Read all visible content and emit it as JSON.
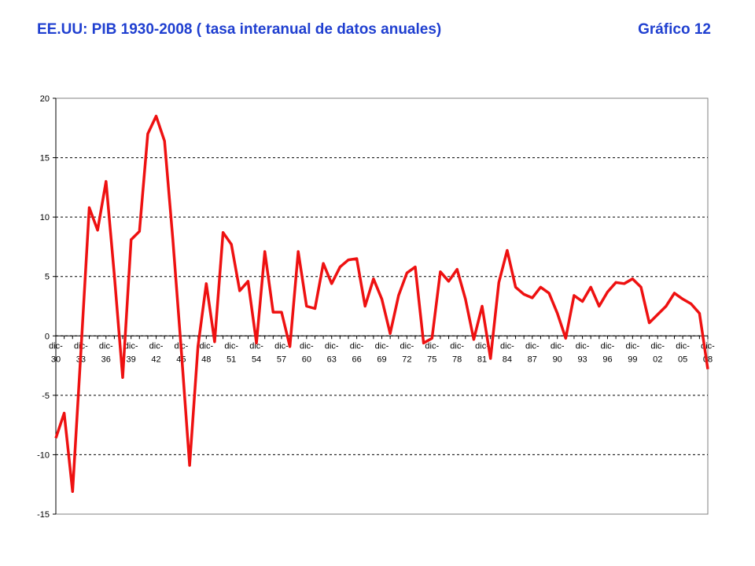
{
  "page": {
    "title": "EE.UU: PIB 1930-2008 ( tasa interanual de datos anuales)",
    "chart_number": "Gráfico 12"
  },
  "chart_data": {
    "type": "line",
    "title": "EE.UU: PIB 1930-2008 ( tasa interanual de datos anuales)",
    "xlabel": "",
    "ylabel": "",
    "ylim": [
      -15,
      20
    ],
    "yticks": [
      20,
      15,
      10,
      5,
      0,
      -5,
      -10,
      -15
    ],
    "grid": "horizontal dashed",
    "legend": "none",
    "line_color": "#ee1111",
    "x_tick_labels": [
      {
        "year": 1930,
        "line1": "dic-",
        "line2": "30"
      },
      {
        "year": 1933,
        "line1": "dic-",
        "line2": "33"
      },
      {
        "year": 1936,
        "line1": "dic-",
        "line2": "36"
      },
      {
        "year": 1939,
        "line1": "dic-",
        "line2": "39"
      },
      {
        "year": 1942,
        "line1": "dic-",
        "line2": "42"
      },
      {
        "year": 1945,
        "line1": "dic-",
        "line2": "45"
      },
      {
        "year": 1948,
        "line1": "dic-",
        "line2": "48"
      },
      {
        "year": 1951,
        "line1": "dic-",
        "line2": "51"
      },
      {
        "year": 1954,
        "line1": "dic-",
        "line2": "54"
      },
      {
        "year": 1957,
        "line1": "dic-",
        "line2": "57"
      },
      {
        "year": 1960,
        "line1": "dic-",
        "line2": "60"
      },
      {
        "year": 1963,
        "line1": "dic-",
        "line2": "63"
      },
      {
        "year": 1966,
        "line1": "dic-",
        "line2": "66"
      },
      {
        "year": 1969,
        "line1": "dic-",
        "line2": "69"
      },
      {
        "year": 1972,
        "line1": "dic-",
        "line2": "72"
      },
      {
        "year": 1975,
        "line1": "dic-",
        "line2": "75"
      },
      {
        "year": 1978,
        "line1": "dic-",
        "line2": "78"
      },
      {
        "year": 1981,
        "line1": "dic-",
        "line2": "81"
      },
      {
        "year": 1984,
        "line1": "dic-",
        "line2": "84"
      },
      {
        "year": 1987,
        "line1": "dic-",
        "line2": "87"
      },
      {
        "year": 1990,
        "line1": "dic-",
        "line2": "90"
      },
      {
        "year": 1993,
        "line1": "dic-",
        "line2": "93"
      },
      {
        "year": 1996,
        "line1": "dic-",
        "line2": "96"
      },
      {
        "year": 1999,
        "line1": "dic-",
        "line2": "99"
      },
      {
        "year": 2002,
        "line1": "dic-",
        "line2": "02"
      },
      {
        "year": 2005,
        "line1": "dic-",
        "line2": "05"
      },
      {
        "year": 2008,
        "line1": "dic-",
        "line2": "08"
      }
    ],
    "series": [
      {
        "x": [
          1930,
          1931,
          1932,
          1933,
          1934,
          1935,
          1936,
          1937,
          1938,
          1939,
          1940,
          1941,
          1942,
          1943,
          1944,
          1945,
          1946,
          1947,
          1948,
          1949,
          1950,
          1951,
          1952,
          1953,
          1954,
          1955,
          1956,
          1957,
          1958,
          1959,
          1960,
          1961,
          1962,
          1963,
          1964,
          1965,
          1966,
          1967,
          1968,
          1969,
          1970,
          1971,
          1972,
          1973,
          1974,
          1975,
          1976,
          1977,
          1978,
          1979,
          1980,
          1981,
          1982,
          1983,
          1984,
          1985,
          1986,
          1987,
          1988,
          1989,
          1990,
          1991,
          1992,
          1993,
          1994,
          1995,
          1996,
          1997,
          1998,
          1999,
          2000,
          2001,
          2002,
          2003,
          2004,
          2005,
          2006,
          2007,
          2008
        ],
        "values": [
          -8.6,
          -6.5,
          -13.1,
          -1.3,
          10.8,
          8.9,
          13.0,
          5.1,
          -3.5,
          8.1,
          8.8,
          17.0,
          18.5,
          16.4,
          8.1,
          -1.1,
          -10.9,
          -0.9,
          4.4,
          -0.5,
          8.7,
          7.7,
          3.8,
          4.6,
          -0.6,
          7.1,
          2.0,
          2.0,
          -0.9,
          7.1,
          2.5,
          2.3,
          6.1,
          4.4,
          5.8,
          6.4,
          6.5,
          2.5,
          4.8,
          3.1,
          0.2,
          3.4,
          5.3,
          5.8,
          -0.6,
          -0.2,
          5.4,
          4.6,
          5.6,
          3.1,
          -0.3,
          2.5,
          -1.9,
          4.5,
          7.2,
          4.1,
          3.5,
          3.2,
          4.1,
          3.6,
          1.9,
          -0.2,
          3.4,
          2.9,
          4.1,
          2.5,
          3.7,
          4.5,
          4.4,
          4.8,
          4.1,
          1.1,
          1.8,
          2.5,
          3.6,
          3.1,
          2.7,
          1.9,
          -2.8
        ]
      }
    ]
  }
}
